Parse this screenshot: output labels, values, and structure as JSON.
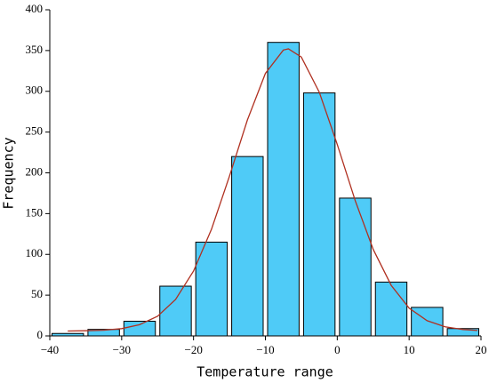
{
  "chart_data": {
    "type": "histogram",
    "xlabel": "Temperature range",
    "ylabel": "Frequency",
    "bins": [
      -40,
      -35,
      -30,
      -25,
      -20,
      -15,
      -10,
      -5,
      0,
      5,
      10,
      15,
      20
    ],
    "values": [
      3,
      8,
      18,
      61,
      115,
      220,
      360,
      298,
      169,
      66,
      35,
      9
    ],
    "color": "#4fcbf7",
    "curve": {
      "color": "#b03020",
      "x": [
        -37.5,
        -35,
        -32.5,
        -30,
        -27.5,
        -25,
        -22.5,
        -20,
        -17.5,
        -15,
        -12.5,
        -10,
        -7.5,
        -6.8,
        -5,
        -2.5,
        0,
        2.5,
        5,
        7.5,
        10,
        12.5,
        15,
        17.5,
        19.5
      ],
      "values": [
        6,
        6.3,
        7,
        8.9,
        13.7,
        24.2,
        44.7,
        79.6,
        130.9,
        196,
        265,
        322,
        350.6,
        352,
        342,
        299,
        235,
        166,
        106,
        62,
        34,
        18.6,
        11.1,
        7.8,
        6.7
      ]
    },
    "xlim": [
      -40,
      20
    ],
    "xticks": [
      {
        "value": -40,
        "label": "−40"
      },
      {
        "value": -30,
        "label": "−30"
      },
      {
        "value": -20,
        "label": "−20"
      },
      {
        "value": -10,
        "label": "−10"
      },
      0,
      10,
      20
    ],
    "ylim": [
      0,
      400
    ],
    "yticks": [
      0,
      50,
      100,
      150,
      200,
      250,
      300,
      350,
      400
    ]
  }
}
